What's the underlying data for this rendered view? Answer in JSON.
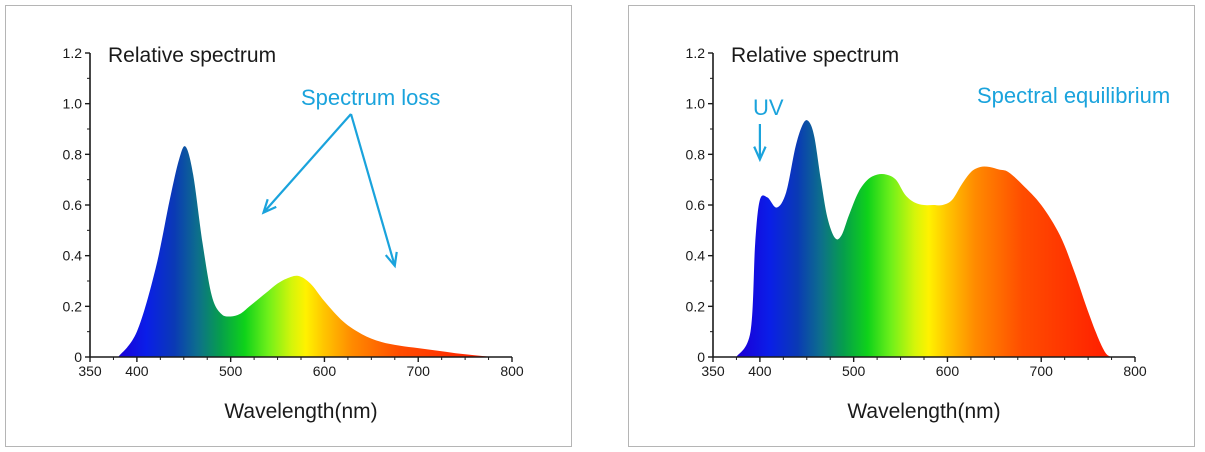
{
  "accent_color": "#1aa3dc",
  "chart_data": [
    {
      "type": "area",
      "title": "Relative spectrum",
      "xlabel": "Wavelength(nm)",
      "ylabel": "",
      "xlim": [
        350,
        800
      ],
      "ylim": [
        0,
        1.2
      ],
      "x_ticks": [
        "350",
        "400",
        "500",
        "600",
        "700",
        "800"
      ],
      "y_ticks": [
        "0",
        "0.2",
        "0.4",
        "0.6",
        "0.8",
        "1.0",
        "1.2"
      ],
      "grid": false,
      "fill": "visible-spectrum gradient",
      "x": [
        380,
        400,
        420,
        435,
        445,
        452,
        460,
        470,
        480,
        490,
        500,
        510,
        520,
        530,
        540,
        550,
        560,
        572,
        585,
        600,
        620,
        640,
        660,
        680,
        700,
        720,
        740,
        760,
        780
      ],
      "y": [
        0.0,
        0.1,
        0.35,
        0.62,
        0.78,
        0.83,
        0.72,
        0.45,
        0.24,
        0.17,
        0.16,
        0.17,
        0.2,
        0.23,
        0.26,
        0.29,
        0.31,
        0.32,
        0.29,
        0.22,
        0.14,
        0.09,
        0.06,
        0.045,
        0.035,
        0.025,
        0.015,
        0.007,
        0.0
      ],
      "annotations": [
        {
          "text": "Spectrum loss",
          "arrow_targets": [
            [
              535,
              0.57
            ],
            [
              675,
              0.36
            ]
          ]
        }
      ]
    },
    {
      "type": "area",
      "title": "Relative spectrum",
      "xlabel": "Wavelength(nm)",
      "ylabel": "",
      "xlim": [
        350,
        800
      ],
      "ylim": [
        0,
        1.2
      ],
      "x_ticks": [
        "350",
        "400",
        "500",
        "600",
        "700",
        "800"
      ],
      "y_ticks": [
        "0",
        "0.2",
        "0.4",
        "0.6",
        "0.8",
        "1.0",
        "1.2"
      ],
      "grid": false,
      "fill": "visible-spectrum gradient",
      "x": [
        375,
        390,
        395,
        400,
        408,
        418,
        428,
        438,
        446,
        452,
        458,
        465,
        472,
        480,
        487,
        495,
        505,
        515,
        525,
        535,
        545,
        555,
        565,
        575,
        585,
        595,
        605,
        615,
        625,
        635,
        645,
        655,
        665,
        680,
        700,
        720,
        735,
        748,
        758,
        765,
        770,
        775
      ],
      "y": [
        0.0,
        0.1,
        0.45,
        0.62,
        0.63,
        0.59,
        0.65,
        0.83,
        0.92,
        0.93,
        0.87,
        0.7,
        0.55,
        0.47,
        0.48,
        0.56,
        0.65,
        0.7,
        0.72,
        0.72,
        0.7,
        0.64,
        0.61,
        0.6,
        0.6,
        0.6,
        0.62,
        0.68,
        0.73,
        0.75,
        0.75,
        0.74,
        0.73,
        0.68,
        0.6,
        0.48,
        0.34,
        0.2,
        0.1,
        0.04,
        0.01,
        0.0
      ],
      "annotations": [
        {
          "text": "UV",
          "arrow_target": [
            400,
            0.78
          ]
        },
        {
          "text": "Spectral equilibrium"
        }
      ]
    }
  ]
}
